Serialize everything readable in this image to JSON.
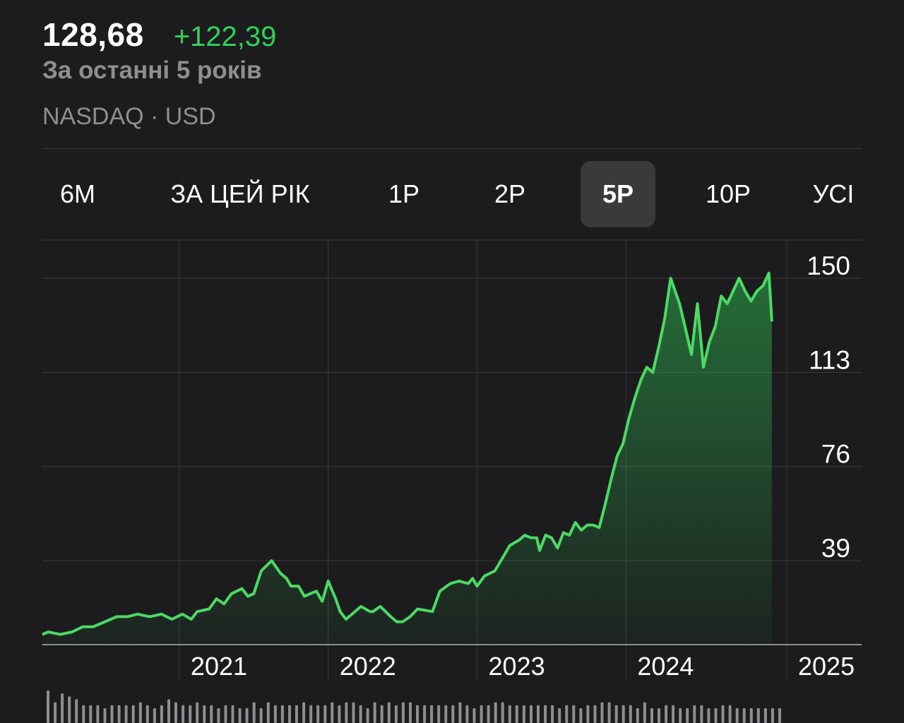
{
  "quote": {
    "price": "128,68",
    "change": "+122,39",
    "period": "За останні 5 років",
    "exchange": "NASDAQ · USD"
  },
  "range_tabs": [
    {
      "label": "6М",
      "active": false
    },
    {
      "label": "ЗА ЦЕЙ РІК",
      "active": false
    },
    {
      "label": "1Р",
      "active": false
    },
    {
      "label": "2Р",
      "active": false
    },
    {
      "label": "5Р",
      "active": true
    },
    {
      "label": "10Р",
      "active": false
    },
    {
      "label": "УСІ",
      "active": false
    }
  ],
  "colors": {
    "background": "#1c1c1e",
    "line": "#4cd964",
    "gain": "#30d158",
    "muted": "#8e8e93",
    "grid": "#3a3a3c",
    "volume": "#8e8e93"
  },
  "chart_data": {
    "type": "area",
    "title": "",
    "xlabel": "",
    "ylabel": "",
    "ylim": [
      1,
      160
    ],
    "yticks": [
      39,
      76,
      113,
      150
    ],
    "ytick_labels": [
      "39",
      "76",
      "113",
      "150"
    ],
    "xticks": [
      2021,
      2022,
      2023,
      2024,
      2025
    ],
    "xtick_labels": [
      "2021",
      "2022",
      "2023",
      "2024",
      "2025"
    ],
    "xlim": [
      2020.08,
      2025.08
    ],
    "grid": true,
    "series": [
      {
        "x": [
          2020.08,
          2020.12,
          2020.2,
          2020.28,
          2020.35,
          2020.42,
          2020.5,
          2020.58,
          2020.65,
          2020.72,
          2020.8,
          2020.88,
          2020.95,
          2021.02,
          2021.08,
          2021.12,
          2021.2,
          2021.25,
          2021.3,
          2021.35,
          2021.42,
          2021.46,
          2021.5,
          2021.55,
          2021.62,
          2021.68,
          2021.72,
          2021.75,
          2021.8,
          2021.84,
          2021.88,
          2021.92,
          2021.96,
          2022.0,
          2022.05,
          2022.08,
          2022.12,
          2022.22,
          2022.28,
          2022.3,
          2022.35,
          2022.42,
          2022.46,
          2022.5,
          2022.55,
          2022.6,
          2022.7,
          2022.75,
          2022.82,
          2022.88,
          2022.94,
          2022.97,
          2023.0,
          2023.05,
          2023.12,
          2023.18,
          2023.22,
          2023.28,
          2023.32,
          2023.36,
          2023.4,
          2023.42,
          2023.46,
          2023.5,
          2023.54,
          2023.58,
          2023.62,
          2023.66,
          2023.7,
          2023.74,
          2023.78,
          2023.82,
          2023.86,
          2023.9,
          2023.94,
          2023.98,
          2024.02,
          2024.06,
          2024.1,
          2024.14,
          2024.18,
          2024.22,
          2024.26,
          2024.3,
          2024.33,
          2024.36,
          2024.4,
          2024.44,
          2024.48,
          2024.52,
          2024.56,
          2024.6,
          2024.64,
          2024.68,
          2024.72,
          2024.76,
          2024.8,
          2024.84,
          2024.88,
          2024.92,
          2024.96,
          2024.98
        ],
        "y": [
          5,
          6,
          5,
          6,
          8,
          8,
          10,
          12,
          12,
          13,
          12,
          13,
          11,
          13,
          11,
          14,
          15,
          19,
          17,
          21,
          23,
          20,
          21,
          30,
          34,
          29,
          27,
          24,
          24,
          20,
          21,
          22,
          18,
          26,
          19,
          14,
          11,
          16,
          14,
          14,
          16,
          12,
          10,
          10,
          12,
          15,
          14,
          22,
          25,
          26,
          25,
          27,
          24,
          28,
          30,
          36,
          40,
          42,
          44,
          43,
          43,
          38,
          44,
          43,
          39,
          45,
          44,
          49,
          46,
          48,
          48,
          47,
          56,
          66,
          75,
          80,
          90,
          98,
          105,
          110,
          108,
          118,
          129,
          145,
          140,
          135,
          125,
          115,
          135,
          110,
          120,
          126,
          138,
          135,
          140,
          145,
          140,
          136,
          140,
          142,
          147,
          128
        ]
      }
    ],
    "volume": [
      11,
      7,
      10,
      9,
      8,
      6,
      6,
      6,
      5,
      6,
      6,
      6,
      6,
      7,
      6,
      5,
      6,
      8,
      7,
      6,
      6,
      7,
      6,
      6,
      5,
      6,
      6,
      5,
      5,
      7,
      5,
      7,
      6,
      6,
      6,
      6,
      7,
      6,
      6,
      6,
      7,
      6,
      7,
      7,
      6,
      5,
      7,
      6,
      7,
      6,
      7,
      7,
      6,
      6,
      6,
      6,
      6,
      6,
      7,
      6,
      5,
      6,
      6,
      7,
      7,
      6,
      6,
      6,
      6,
      6,
      6,
      6,
      5,
      6,
      6,
      5,
      6,
      6,
      7,
      7,
      6,
      6,
      6,
      5,
      7,
      5,
      5,
      6,
      6,
      5,
      5,
      6,
      6,
      5,
      5,
      6,
      6,
      5,
      5,
      5,
      5,
      5,
      5,
      5
    ]
  }
}
